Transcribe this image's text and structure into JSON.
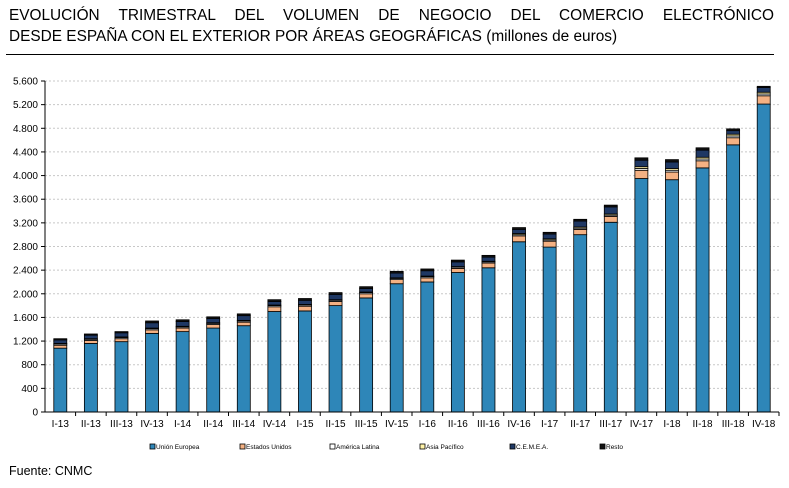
{
  "header": {
    "title_line1": "EVOLUCIÓN TRIMESTRAL DEL VOLUMEN DE NEGOCIO DEL COMERCIO ELECTRÓNICO",
    "title_line2": "DESDE ESPAÑA CON EL EXTERIOR POR ÁREAS GEOGRÁFICAS (millones de euros)"
  },
  "footer": {
    "source": "Fuente: CNMC"
  },
  "colors": {
    "ue": "#2e86b8",
    "eeuu": "#f4b183",
    "latam": "#ffffff",
    "asia": "#fff2a8",
    "cemea": "#1f3864",
    "resto": "#111111",
    "grid": "#c8c8c8",
    "stroke": "#000000"
  },
  "chart_data": {
    "type": "bar",
    "stacked": true,
    "title": "EVOLUCIÓN TRIMESTRAL DEL VOLUMEN DE NEGOCIO DEL COMERCIO ELECTRÓNICO DESDE ESPAÑA CON EL EXTERIOR POR ÁREAS GEOGRÁFICAS (millones de euros)",
    "xlabel": "",
    "ylabel": "",
    "ylim": [
      0,
      5600
    ],
    "yticks": [
      0,
      400,
      800,
      1200,
      1600,
      2000,
      2400,
      2800,
      3200,
      3600,
      4000,
      4400,
      4800,
      5200,
      5600
    ],
    "ytick_labels": [
      "0",
      "400",
      "800",
      "1.200",
      "1.600",
      "2.000",
      "2.400",
      "2.800",
      "3.200",
      "3.600",
      "4.000",
      "4.400",
      "4.800",
      "5.200",
      "5.600"
    ],
    "grid": true,
    "legend_position": "bottom",
    "categories": [
      "I-13",
      "II-13",
      "III-13",
      "IV-13",
      "I-14",
      "II-14",
      "III-14",
      "IV-14",
      "I-15",
      "II-15",
      "III-15",
      "IV-15",
      "I-16",
      "II-16",
      "III-16",
      "IV-16",
      "I-17",
      "II-17",
      "III-17",
      "IV-17",
      "I-18",
      "II-18",
      "III-18",
      "IV-18"
    ],
    "series": [
      {
        "name": "Unión Europea",
        "color_key": "ue",
        "values": [
          1080,
          1160,
          1190,
          1330,
          1360,
          1420,
          1460,
          1700,
          1710,
          1800,
          1930,
          2170,
          2200,
          2360,
          2440,
          2880,
          2790,
          3000,
          3210,
          3950,
          3930,
          4130,
          4520,
          5210
        ]
      },
      {
        "name": "Estados Unidos",
        "color_key": "eeuu",
        "values": [
          50,
          50,
          50,
          60,
          60,
          60,
          60,
          80,
          80,
          70,
          70,
          70,
          70,
          70,
          80,
          100,
          100,
          90,
          100,
          140,
          130,
          120,
          120,
          140
        ]
      },
      {
        "name": "América Latina",
        "color_key": "latam",
        "values": [
          20,
          20,
          20,
          20,
          20,
          20,
          20,
          20,
          20,
          20,
          20,
          20,
          20,
          20,
          20,
          20,
          20,
          20,
          20,
          30,
          30,
          30,
          30,
          30
        ]
      },
      {
        "name": "Asia Pacífico",
        "color_key": "asia",
        "values": [
          10,
          10,
          10,
          10,
          10,
          10,
          10,
          10,
          10,
          10,
          10,
          10,
          10,
          10,
          10,
          20,
          20,
          20,
          20,
          30,
          30,
          30,
          30,
          30
        ]
      },
      {
        "name": "C.E.M.E.A.",
        "color_key": "cemea",
        "values": [
          60,
          60,
          70,
          90,
          80,
          70,
          80,
          60,
          70,
          90,
          60,
          80,
          90,
          80,
          70,
          70,
          80,
          100,
          120,
          110,
          110,
          120,
          60,
          80
        ]
      },
      {
        "name": "Resto",
        "color_key": "resto",
        "values": [
          20,
          20,
          20,
          30,
          30,
          30,
          30,
          30,
          30,
          30,
          30,
          30,
          30,
          30,
          30,
          30,
          30,
          30,
          30,
          40,
          40,
          40,
          30,
          20
        ]
      }
    ]
  }
}
